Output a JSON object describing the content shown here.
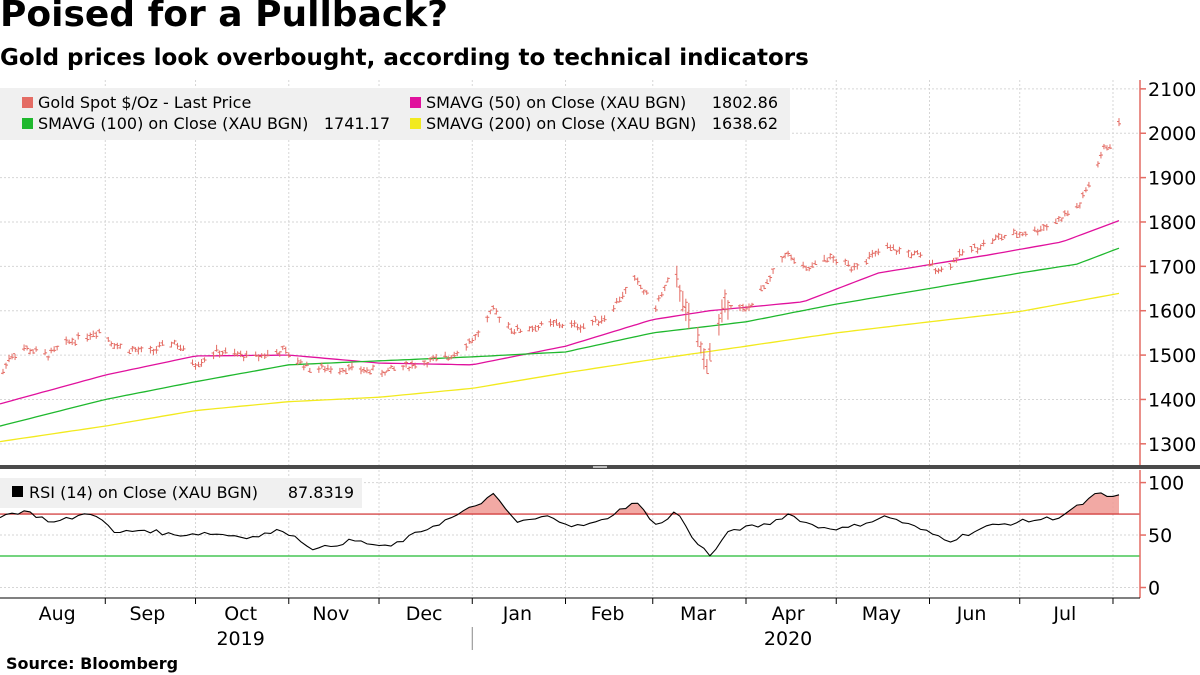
{
  "title": "Poised for a Pullback?",
  "subtitle": "Gold prices look overbought, according to technical indicators",
  "source": "Source: Bloomberg",
  "colors": {
    "price": "#e46c64",
    "sma50": "#e0119d",
    "sma100": "#1fb82e",
    "sma200": "#f2ea1f",
    "rsi": "#000000",
    "rsi_upper": "#cc2222",
    "rsi_lower": "#22bb33",
    "rsi_fill": "#f09a94"
  },
  "chart_data": [
    {
      "type": "line",
      "title": "Gold Spot $/Oz",
      "ylim": [
        1250,
        2120
      ],
      "y_ticks": [
        1300,
        1400,
        1500,
        1600,
        1700,
        1800,
        1900,
        2000,
        2100
      ],
      "x_range": [
        "2019-07-28",
        "2020-08-03"
      ],
      "legend": [
        {
          "label": "Gold Spot $/Oz - Last Price",
          "value": ""
        },
        {
          "label": "SMAVG (50)  on Close (XAU BGN)",
          "value": "1802.86"
        },
        {
          "label": "SMAVG (100)  on Close (XAU BGN)",
          "value": "1741.17"
        },
        {
          "label": "SMAVG (200)  on Close (XAU BGN)",
          "value": "1638.62"
        }
      ],
      "price_anchors": [
        {
          "date": "2019-07-28",
          "value": 1445
        },
        {
          "date": "2019-07-31",
          "value": 1495
        },
        {
          "date": "2019-08-05",
          "value": 1515
        },
        {
          "date": "2019-08-13",
          "value": 1500
        },
        {
          "date": "2019-08-20",
          "value": 1530
        },
        {
          "date": "2019-08-30",
          "value": 1555
        },
        {
          "date": "2019-09-05",
          "value": 1520
        },
        {
          "date": "2019-09-15",
          "value": 1505
        },
        {
          "date": "2019-09-24",
          "value": 1530
        },
        {
          "date": "2019-10-01",
          "value": 1480
        },
        {
          "date": "2019-10-08",
          "value": 1508
        },
        {
          "date": "2019-10-20",
          "value": 1495
        },
        {
          "date": "2019-10-30",
          "value": 1510
        },
        {
          "date": "2019-11-08",
          "value": 1470
        },
        {
          "date": "2019-11-20",
          "value": 1470
        },
        {
          "date": "2019-12-02",
          "value": 1462
        },
        {
          "date": "2019-12-12",
          "value": 1478
        },
        {
          "date": "2019-12-24",
          "value": 1495
        },
        {
          "date": "2020-01-02",
          "value": 1540
        },
        {
          "date": "2020-01-08",
          "value": 1600
        },
        {
          "date": "2020-01-15",
          "value": 1555
        },
        {
          "date": "2020-01-28",
          "value": 1570
        },
        {
          "date": "2020-02-07",
          "value": 1565
        },
        {
          "date": "2020-02-14",
          "value": 1585
        },
        {
          "date": "2020-02-24",
          "value": 1670
        },
        {
          "date": "2020-03-02",
          "value": 1610
        },
        {
          "date": "2020-03-08",
          "value": 1690
        },
        {
          "date": "2020-03-12",
          "value": 1600
        },
        {
          "date": "2020-03-19",
          "value": 1480
        },
        {
          "date": "2020-03-25",
          "value": 1620
        },
        {
          "date": "2020-04-01",
          "value": 1600
        },
        {
          "date": "2020-04-08",
          "value": 1660
        },
        {
          "date": "2020-04-14",
          "value": 1730
        },
        {
          "date": "2020-04-21",
          "value": 1690
        },
        {
          "date": "2020-04-28",
          "value": 1720
        },
        {
          "date": "2020-05-06",
          "value": 1700
        },
        {
          "date": "2020-05-18",
          "value": 1740
        },
        {
          "date": "2020-05-28",
          "value": 1725
        },
        {
          "date": "2020-06-05",
          "value": 1690
        },
        {
          "date": "2020-06-12",
          "value": 1730
        },
        {
          "date": "2020-06-24",
          "value": 1765
        },
        {
          "date": "2020-07-06",
          "value": 1780
        },
        {
          "date": "2020-07-14",
          "value": 1805
        },
        {
          "date": "2020-07-21",
          "value": 1840
        },
        {
          "date": "2020-07-25",
          "value": 1900
        },
        {
          "date": "2020-07-29",
          "value": 1965
        },
        {
          "date": "2020-07-31",
          "value": 1975
        },
        {
          "date": "2020-08-03",
          "value": 2020
        }
      ],
      "series": [
        {
          "name": "SMAVG (50)",
          "points": [
            {
              "date": "2019-07-28",
              "value": 1390
            },
            {
              "date": "2019-09-01",
              "value": 1455
            },
            {
              "date": "2019-10-01",
              "value": 1498
            },
            {
              "date": "2019-11-01",
              "value": 1500
            },
            {
              "date": "2019-12-01",
              "value": 1482
            },
            {
              "date": "2020-01-01",
              "value": 1478
            },
            {
              "date": "2020-02-01",
              "value": 1520
            },
            {
              "date": "2020-03-01",
              "value": 1580
            },
            {
              "date": "2020-03-20",
              "value": 1600
            },
            {
              "date": "2020-04-20",
              "value": 1620
            },
            {
              "date": "2020-05-15",
              "value": 1685
            },
            {
              "date": "2020-06-20",
              "value": 1725
            },
            {
              "date": "2020-07-15",
              "value": 1755
            },
            {
              "date": "2020-08-03",
              "value": 1803
            }
          ]
        },
        {
          "name": "SMAVG (100)",
          "points": [
            {
              "date": "2019-07-28",
              "value": 1340
            },
            {
              "date": "2019-09-01",
              "value": 1400
            },
            {
              "date": "2019-10-01",
              "value": 1440
            },
            {
              "date": "2019-11-01",
              "value": 1478
            },
            {
              "date": "2019-12-01",
              "value": 1487
            },
            {
              "date": "2020-01-01",
              "value": 1496
            },
            {
              "date": "2020-02-01",
              "value": 1507
            },
            {
              "date": "2020-03-01",
              "value": 1550
            },
            {
              "date": "2020-04-01",
              "value": 1575
            },
            {
              "date": "2020-05-01",
              "value": 1615
            },
            {
              "date": "2020-06-01",
              "value": 1650
            },
            {
              "date": "2020-07-01",
              "value": 1685
            },
            {
              "date": "2020-07-20",
              "value": 1705
            },
            {
              "date": "2020-08-03",
              "value": 1741
            }
          ]
        },
        {
          "name": "SMAVG (200)",
          "points": [
            {
              "date": "2019-07-28",
              "value": 1305
            },
            {
              "date": "2019-09-01",
              "value": 1340
            },
            {
              "date": "2019-10-01",
              "value": 1375
            },
            {
              "date": "2019-11-01",
              "value": 1395
            },
            {
              "date": "2019-12-01",
              "value": 1405
            },
            {
              "date": "2020-01-01",
              "value": 1425
            },
            {
              "date": "2020-02-01",
              "value": 1460
            },
            {
              "date": "2020-03-01",
              "value": 1490
            },
            {
              "date": "2020-04-01",
              "value": 1520
            },
            {
              "date": "2020-05-01",
              "value": 1550
            },
            {
              "date": "2020-06-01",
              "value": 1575
            },
            {
              "date": "2020-07-01",
              "value": 1598
            },
            {
              "date": "2020-08-03",
              "value": 1639
            }
          ]
        }
      ]
    },
    {
      "type": "line",
      "title": "RSI (14)  on Close (XAU BGN)",
      "ylim": [
        -10,
        112
      ],
      "y_ticks": [
        0,
        50,
        100
      ],
      "overbought": 70,
      "oversold": 30,
      "legend": [
        {
          "label": "RSI (14)  on Close (XAU BGN)",
          "value": "87.8319"
        }
      ],
      "points": [
        {
          "date": "2019-07-28",
          "value": 68
        },
        {
          "date": "2019-08-05",
          "value": 73
        },
        {
          "date": "2019-08-15",
          "value": 62
        },
        {
          "date": "2019-08-28",
          "value": 72
        },
        {
          "date": "2019-09-04",
          "value": 52
        },
        {
          "date": "2019-09-14",
          "value": 55
        },
        {
          "date": "2019-09-24",
          "value": 50
        },
        {
          "date": "2019-10-04",
          "value": 52
        },
        {
          "date": "2019-10-20",
          "value": 48
        },
        {
          "date": "2019-10-30",
          "value": 55
        },
        {
          "date": "2019-11-10",
          "value": 36
        },
        {
          "date": "2019-11-22",
          "value": 45
        },
        {
          "date": "2019-12-04",
          "value": 38
        },
        {
          "date": "2019-12-16",
          "value": 55
        },
        {
          "date": "2019-12-28",
          "value": 70
        },
        {
          "date": "2020-01-08",
          "value": 88
        },
        {
          "date": "2020-01-16",
          "value": 62
        },
        {
          "date": "2020-01-27",
          "value": 68
        },
        {
          "date": "2020-02-04",
          "value": 58
        },
        {
          "date": "2020-02-12",
          "value": 62
        },
        {
          "date": "2020-02-24",
          "value": 82
        },
        {
          "date": "2020-03-03",
          "value": 58
        },
        {
          "date": "2020-03-09",
          "value": 74
        },
        {
          "date": "2020-03-13",
          "value": 52
        },
        {
          "date": "2020-03-20",
          "value": 30
        },
        {
          "date": "2020-03-27",
          "value": 55
        },
        {
          "date": "2020-04-08",
          "value": 60
        },
        {
          "date": "2020-04-15",
          "value": 70
        },
        {
          "date": "2020-04-24",
          "value": 58
        },
        {
          "date": "2020-05-04",
          "value": 56
        },
        {
          "date": "2020-05-18",
          "value": 68
        },
        {
          "date": "2020-06-01",
          "value": 52
        },
        {
          "date": "2020-06-08",
          "value": 45
        },
        {
          "date": "2020-06-20",
          "value": 58
        },
        {
          "date": "2020-07-02",
          "value": 63
        },
        {
          "date": "2020-07-14",
          "value": 67
        },
        {
          "date": "2020-07-22",
          "value": 80
        },
        {
          "date": "2020-07-27",
          "value": 90
        },
        {
          "date": "2020-07-30",
          "value": 86
        },
        {
          "date": "2020-08-03",
          "value": 88
        }
      ]
    }
  ],
  "x_axis": {
    "months": [
      {
        "label": "Aug",
        "date": "2019-08-16"
      },
      {
        "label": "Sep",
        "date": "2019-09-15"
      },
      {
        "label": "Oct",
        "date": "2019-10-16"
      },
      {
        "label": "Nov",
        "date": "2019-11-15"
      },
      {
        "label": "Dec",
        "date": "2019-12-16"
      },
      {
        "label": "Jan",
        "date": "2020-01-16"
      },
      {
        "label": "Feb",
        "date": "2020-02-15"
      },
      {
        "label": "Mar",
        "date": "2020-03-16"
      },
      {
        "label": "Apr",
        "date": "2020-04-15"
      },
      {
        "label": "May",
        "date": "2020-05-16"
      },
      {
        "label": "Jun",
        "date": "2020-06-15"
      },
      {
        "label": "Jul",
        "date": "2020-07-16"
      }
    ],
    "month_boundaries": [
      "2019-09-01",
      "2019-10-01",
      "2019-11-01",
      "2019-12-01",
      "2020-01-01",
      "2020-02-01",
      "2020-03-01",
      "2020-04-01",
      "2020-05-01",
      "2020-06-01",
      "2020-07-01",
      "2020-08-01"
    ],
    "years": [
      {
        "label": "2019",
        "date": "2019-10-16"
      },
      {
        "label": "2020",
        "date": "2020-04-15"
      }
    ],
    "year_boundary": "2020-01-01"
  }
}
